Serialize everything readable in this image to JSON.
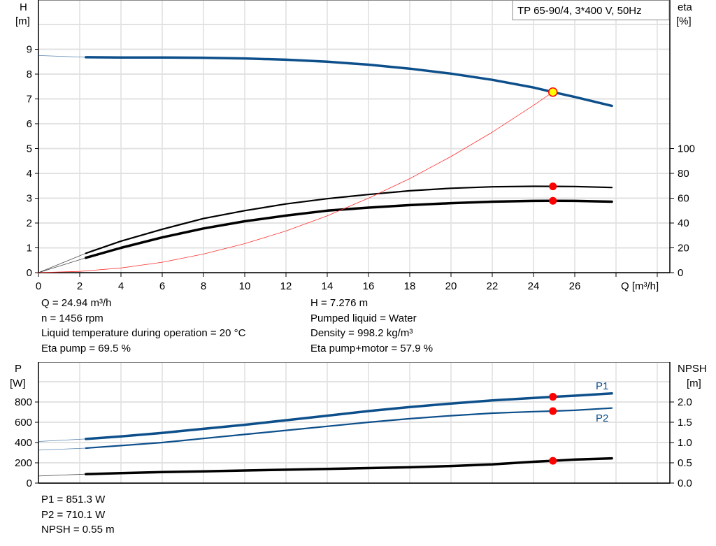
{
  "chart_data": [
    {
      "type": "line",
      "legend_box": "TP 65-90/4, 3*400 V, 50Hz",
      "xlabel": "Q [m³/h]",
      "ylabel_left": [
        "H",
        "[m]"
      ],
      "ylabel_right": [
        "eta",
        "[%]"
      ],
      "xlim": [
        0,
        30.6
      ],
      "ylim_left": [
        0,
        11
      ],
      "ylim_right": [
        0,
        220
      ],
      "x_ticks": [
        "0",
        "2",
        "4",
        "6",
        "8",
        "10",
        "12",
        "14",
        "16",
        "18",
        "20",
        "22",
        "24",
        "26"
      ],
      "y_ticks_left": [
        "0",
        "1",
        "2",
        "3",
        "4",
        "5",
        "6",
        "7",
        "8",
        "9"
      ],
      "y_ticks_right": [
        "0",
        "20",
        "40",
        "60",
        "80",
        "100"
      ],
      "grid": true,
      "series": [
        {
          "key": "H",
          "axis": "left",
          "color": "#0d4f8b",
          "x": [
            2.3,
            4,
            6,
            8,
            10,
            12,
            14,
            16,
            18,
            20,
            22,
            24,
            24.94,
            26,
            27.8
          ],
          "y": [
            8.68,
            8.67,
            8.67,
            8.66,
            8.63,
            8.58,
            8.5,
            8.38,
            8.22,
            8.02,
            7.77,
            7.46,
            7.276,
            7.08,
            6.72
          ],
          "extension": {
            "x": [
              0,
              2.3
            ],
            "y": [
              8.75,
              8.68
            ]
          }
        },
        {
          "key": "eta_pump",
          "axis": "right",
          "color": "#000000",
          "x": [
            2.3,
            4,
            6,
            8,
            10,
            12,
            14,
            16,
            18,
            20,
            22,
            24,
            24.94,
            26,
            27.8
          ],
          "y": [
            15.6,
            25.4,
            35,
            43.6,
            50,
            55.4,
            59.6,
            63,
            66,
            68,
            69.2,
            69.6,
            69.5,
            69.4,
            68.6
          ],
          "extension": {
            "x": [
              0,
              2.3
            ],
            "y": [
              0,
              15.6
            ]
          }
        },
        {
          "key": "eta_pump_motor",
          "axis": "right",
          "color": "#000000",
          "x": [
            2.3,
            4,
            6,
            8,
            10,
            12,
            14,
            16,
            18,
            20,
            22,
            24,
            24.94,
            26,
            27.8
          ],
          "y": [
            12,
            20,
            28.4,
            35.6,
            41.4,
            46,
            50,
            52.4,
            54.4,
            56,
            57.2,
            57.8,
            57.9,
            57.8,
            57.2
          ],
          "extension": {
            "x": [
              0,
              2.3
            ],
            "y": [
              0,
              12
            ]
          }
        },
        {
          "key": "system_curve",
          "axis": "left",
          "color": "#ff3030",
          "x": [
            0,
            2,
            4,
            6,
            8,
            10,
            12,
            14,
            16,
            18,
            20,
            22,
            24,
            24.94
          ],
          "y": [
            0,
            0.05,
            0.19,
            0.42,
            0.75,
            1.17,
            1.68,
            2.29,
            3.0,
            3.79,
            4.68,
            5.66,
            6.74,
            7.276
          ]
        }
      ],
      "operating_points": [
        {
          "series": "H",
          "x": 24.94,
          "y": 7.276,
          "color": "#ffff00"
        },
        {
          "series": "eta_pump",
          "x": 24.94,
          "y": 69.5,
          "color": "#ff0000"
        },
        {
          "series": "eta_pump_motor",
          "x": 24.94,
          "y": 57.9,
          "color": "#ff0000"
        }
      ]
    },
    {
      "type": "line",
      "ylabel_left": [
        "P",
        "[W]"
      ],
      "ylabel_right": [
        "NPSH",
        "[m]"
      ],
      "xlim": [
        0,
        30.6
      ],
      "ylim_left": [
        0,
        1200
      ],
      "ylim_right": [
        0,
        3.0
      ],
      "y_ticks_left": [
        "0",
        "200",
        "400",
        "600",
        "800"
      ],
      "y_ticks_right": [
        "0.0",
        "0.5",
        "1.0",
        "1.5",
        "2.0"
      ],
      "grid": true,
      "series": [
        {
          "name": "P1",
          "axis": "left",
          "color": "#0d4f8b",
          "x": [
            2.3,
            4,
            6,
            8,
            10,
            12,
            14,
            16,
            18,
            20,
            22,
            24,
            24.94,
            26,
            27.8
          ],
          "y": [
            435,
            460,
            495,
            535,
            575,
            620,
            665,
            710,
            750,
            785,
            815,
            840,
            851.3,
            862,
            885
          ],
          "extension": {
            "x": [
              0,
              2.3
            ],
            "y": [
              410,
              435
            ]
          }
        },
        {
          "name": "P2",
          "axis": "left",
          "color": "#0d4f8b",
          "x": [
            2.3,
            4,
            6,
            8,
            10,
            12,
            14,
            16,
            18,
            20,
            22,
            24,
            24.94,
            26,
            27.8
          ],
          "y": [
            345,
            370,
            400,
            440,
            480,
            520,
            560,
            600,
            635,
            665,
            690,
            705,
            710.1,
            718,
            740
          ],
          "extension": {
            "x": [
              0,
              2.3
            ],
            "y": [
              325,
              345
            ]
          }
        },
        {
          "key": "NPSH",
          "axis": "right",
          "color": "#000000",
          "x": [
            2.3,
            4,
            6,
            8,
            10,
            12,
            14,
            16,
            18,
            20,
            22,
            24,
            24.94,
            26,
            27.8
          ],
          "y": [
            0.22,
            0.245,
            0.27,
            0.29,
            0.31,
            0.33,
            0.35,
            0.37,
            0.39,
            0.42,
            0.46,
            0.525,
            0.55,
            0.58,
            0.61
          ],
          "extension": {
            "x": [
              0,
              2.3
            ],
            "y": [
              0.175,
              0.22
            ]
          }
        }
      ],
      "operating_points": [
        {
          "series": "P1",
          "x": 24.94,
          "y": 851.3,
          "color": "#ff0000"
        },
        {
          "series": "P2",
          "x": 24.94,
          "y": 710.1,
          "color": "#ff0000"
        },
        {
          "series": "NPSH",
          "x": 24.94,
          "y": 0.55,
          "color": "#ff0000"
        }
      ]
    }
  ],
  "info_top": {
    "left": [
      "Q = 24.94 m³/h",
      "n = 1456 rpm",
      "Liquid temperature during operation = 20 °C",
      "Eta pump = 69.5 %"
    ],
    "right": [
      "H = 7.276 m",
      "Pumped liquid = Water",
      "Density = 998.2 kg/m³",
      "Eta pump+motor = 57.9 %"
    ]
  },
  "info_bottom": [
    "P1 = 851.3 W",
    "P2 = 710.1 W",
    "NPSH = 0.55 m"
  ]
}
